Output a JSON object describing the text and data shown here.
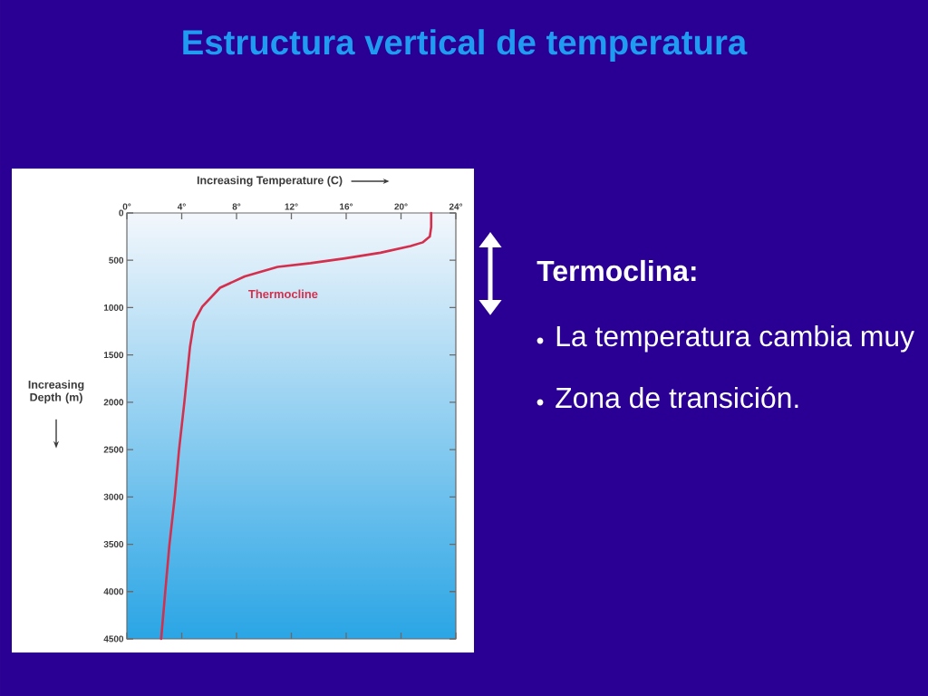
{
  "chart_data": {
    "type": "line",
    "title": "Estructura vertical de temperatura",
    "xlabel": "Increasing Temperature (C)",
    "ylabel": "Increasing Depth (m)",
    "x": [
      22.2,
      22.2,
      22.1,
      21.6,
      20.7,
      18.5,
      15.9,
      13.4,
      11.0,
      8.6,
      6.8,
      5.5,
      4.9,
      4.6,
      4.2,
      3.8,
      3.5,
      3.1,
      2.8,
      2.5
    ],
    "values": [
      0,
      150,
      250,
      310,
      350,
      420,
      480,
      530,
      570,
      670,
      790,
      990,
      1150,
      1420,
      1990,
      2510,
      2990,
      3510,
      4000,
      4500
    ],
    "color": "#d42f4c",
    "line_style": "solid",
    "xlim": [
      0,
      24
    ],
    "ylim": [
      4500,
      0
    ],
    "xticks": [
      {
        "value": 0,
        "label": "0°"
      },
      {
        "value": 4,
        "label": "4°"
      },
      {
        "value": 8,
        "label": "8°"
      },
      {
        "value": 12,
        "label": "12°"
      },
      {
        "value": 16,
        "label": "16°"
      },
      {
        "value": 20,
        "label": "20°"
      },
      {
        "value": 24,
        "label": "24°"
      }
    ],
    "yticks": [
      0,
      500,
      1000,
      1500,
      2000,
      2500,
      3000,
      3500,
      4000,
      4500
    ],
    "annotations": [
      "Thermocline",
      "Termoclina:",
      "La temperatura cambia muy",
      "Zona de transición."
    ]
  }
}
